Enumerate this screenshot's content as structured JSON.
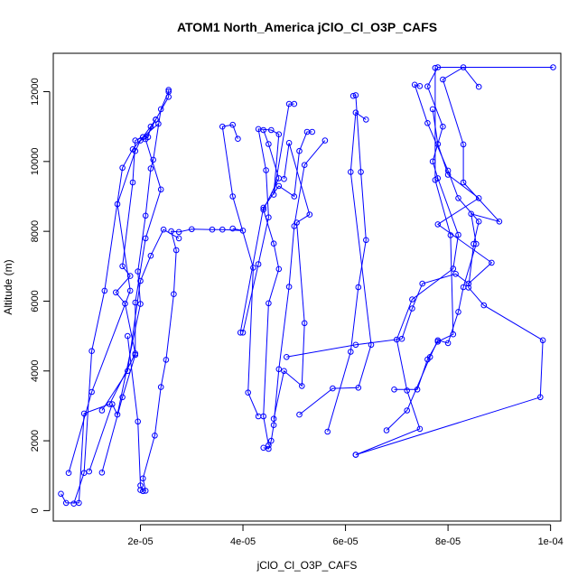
{
  "chart_data": {
    "type": "line",
    "title": "ATOM1 North_America jClO_Cl_O3P_CAFS",
    "xlabel": "jClO_Cl_O3P_CAFS",
    "ylabel": "Altitude (m)",
    "xlim": [
      3e-06,
      0.000102
    ],
    "ylim": [
      -300,
      13100
    ],
    "x_ticks": [
      {
        "value": 2e-05,
        "label": "2e-05"
      },
      {
        "value": 4e-05,
        "label": "4e-05"
      },
      {
        "value": 6e-05,
        "label": "6e-05"
      },
      {
        "value": 8e-05,
        "label": "8e-05"
      },
      {
        "value": 0.0001,
        "label": "1e-04"
      }
    ],
    "y_ticks": [
      {
        "value": 0,
        "label": "0"
      },
      {
        "value": 2000,
        "label": "2000"
      },
      {
        "value": 4000,
        "label": "4000"
      },
      {
        "value": 6000,
        "label": "6000"
      },
      {
        "value": 8000,
        "label": "8000"
      },
      {
        "value": 10000,
        "label": "10000"
      },
      {
        "value": 12000,
        "label": "12000"
      }
    ],
    "grid": false,
    "legend": "none",
    "series_color": "#0000ff",
    "marker": "open-circle",
    "series": [
      {
        "points": [
          [
            4.5e-06,
            480
          ],
          [
            5.5e-06,
            220
          ],
          [
            8e-06,
            220
          ],
          [
            9e-06,
            2780
          ],
          [
            1.4e-05,
            3050
          ],
          [
            1.9e-05,
            4500
          ],
          [
            1.7e-05,
            5930
          ],
          [
            1.52e-05,
            6250
          ],
          [
            1.8e-05,
            6720
          ],
          [
            1.65e-05,
            7000
          ],
          [
            1.85e-05,
            9400
          ],
          [
            1.9e-05,
            10600
          ],
          [
            2.05e-05,
            10700
          ],
          [
            2.3e-05,
            11200
          ],
          [
            2.55e-05,
            11850
          ],
          [
            2.55e-05,
            12050
          ]
        ]
      },
      {
        "points": [
          [
            2e-05,
            590
          ],
          [
            2.1e-05,
            570
          ],
          [
            2.05e-05,
            920
          ],
          [
            2.28e-05,
            2150
          ],
          [
            2.4e-05,
            3540
          ],
          [
            2.5e-05,
            4320
          ],
          [
            2.65e-05,
            6200
          ],
          [
            2.7e-05,
            7460
          ],
          [
            2.6e-05,
            8000
          ],
          [
            2.75e-05,
            7980
          ],
          [
            3e-05,
            8060
          ],
          [
            3.4e-05,
            8050
          ],
          [
            3.6e-05,
            8050
          ],
          [
            4e-05,
            8020
          ],
          [
            3.8e-05,
            8080
          ]
        ]
      },
      {
        "points": [
          [
            6e-06,
            1080
          ],
          [
            1.05e-05,
            3400
          ],
          [
            1.8e-05,
            6300
          ],
          [
            1.55e-05,
            8780
          ],
          [
            1.9e-05,
            10300
          ],
          [
            2e-05,
            10600
          ],
          [
            2.15e-05,
            10700
          ],
          [
            2.2e-05,
            11000
          ],
          [
            2.3e-05,
            11200
          ]
        ]
      },
      {
        "points": [
          [
            1e-05,
            1120
          ],
          [
            1.45e-05,
            3050
          ],
          [
            1.55e-05,
            2750
          ],
          [
            2e-05,
            5920
          ],
          [
            1.95e-05,
            6850
          ],
          [
            2.1e-05,
            8450
          ],
          [
            2.2e-05,
            9800
          ],
          [
            2.25e-05,
            10050
          ],
          [
            2.4e-05,
            11500
          ],
          [
            2.55e-05,
            12000
          ]
        ]
      },
      {
        "points": [
          [
            7e-06,
            200
          ],
          [
            9e-06,
            1080
          ],
          [
            1.05e-05,
            4570
          ],
          [
            1.3e-05,
            6300
          ],
          [
            1.65e-05,
            9820
          ],
          [
            1.85e-05,
            10350
          ],
          [
            2.05e-05,
            10700
          ],
          [
            2.35e-05,
            11080
          ]
        ]
      },
      {
        "points": [
          [
            1.25e-05,
            1090
          ],
          [
            1.65e-05,
            3250
          ],
          [
            1.9e-05,
            4460
          ],
          [
            1.9e-05,
            5960
          ],
          [
            2.1e-05,
            7800
          ],
          [
            2.4e-05,
            9200
          ],
          [
            2.1e-05,
            10640
          ],
          [
            2.3e-05,
            11200
          ]
        ]
      },
      {
        "points": [
          [
            1.25e-05,
            2870
          ],
          [
            1.75e-05,
            4000
          ],
          [
            2e-05,
            6580
          ],
          [
            2.2e-05,
            7300
          ],
          [
            2.45e-05,
            8050
          ],
          [
            2.75e-05,
            7800
          ]
        ]
      },
      {
        "points": [
          [
            1.75e-05,
            5000
          ],
          [
            1.95e-05,
            2550
          ],
          [
            2e-05,
            720
          ],
          [
            2.05e-05,
            560
          ]
        ]
      },
      {
        "points": [
          [
            4.4e-05,
            1800
          ],
          [
            4.5e-05,
            1770
          ],
          [
            4.55e-05,
            2000
          ],
          [
            4.6e-05,
            2450
          ],
          [
            4.7e-05,
            4050
          ],
          [
            4.9e-05,
            6410
          ],
          [
            5e-05,
            8150
          ],
          [
            5.2e-05,
            9900
          ],
          [
            5.6e-05,
            10600
          ]
        ]
      },
      {
        "points": [
          [
            4.3e-05,
            2700
          ],
          [
            4.1e-05,
            3380
          ],
          [
            4.2e-05,
            6960
          ],
          [
            3.8e-05,
            9000
          ],
          [
            3.6e-05,
            11000
          ],
          [
            3.8e-05,
            11050
          ],
          [
            3.9e-05,
            10650
          ]
        ]
      },
      {
        "points": [
          [
            4.5e-05,
            1870
          ],
          [
            4.4e-05,
            2700
          ],
          [
            4.5e-05,
            5940
          ],
          [
            4.7e-05,
            6920
          ],
          [
            4.6e-05,
            7650
          ],
          [
            4.4e-05,
            8620
          ],
          [
            4.7e-05,
            9520
          ],
          [
            4.5e-05,
            10500
          ],
          [
            4.4e-05,
            10900
          ]
        ]
      },
      {
        "points": [
          [
            4e-05,
            5100
          ],
          [
            4.3e-05,
            7060
          ],
          [
            4.5e-05,
            8400
          ],
          [
            4.45e-05,
            9750
          ],
          [
            4.3e-05,
            10930
          ],
          [
            4.55e-05,
            10900
          ],
          [
            4.7e-05,
            10780
          ],
          [
            4.6e-05,
            9050
          ],
          [
            4.9e-05,
            11650
          ],
          [
            5e-05,
            11650
          ]
        ]
      },
      {
        "points": [
          [
            3.95e-05,
            5100
          ],
          [
            4.4e-05,
            8680
          ],
          [
            4.7e-05,
            9300
          ],
          [
            5e-05,
            9000
          ],
          [
            5.1e-05,
            10300
          ],
          [
            5.25e-05,
            10850
          ],
          [
            5.35e-05,
            10850
          ]
        ]
      },
      {
        "points": [
          [
            5.1e-05,
            2750
          ],
          [
            5.75e-05,
            3500
          ],
          [
            6.25e-05,
            3520
          ],
          [
            6.5e-05,
            4750
          ],
          [
            6.1e-05,
            9700
          ],
          [
            6.2e-05,
            11400
          ],
          [
            6.4e-05,
            11200
          ]
        ]
      },
      {
        "points": [
          [
            4.6e-05,
            2630
          ],
          [
            4.8e-05,
            4000
          ],
          [
            5.15e-05,
            3570
          ],
          [
            5.2e-05,
            5370
          ],
          [
            5.05e-05,
            8250
          ],
          [
            5.3e-05,
            8480
          ],
          [
            4.9e-05,
            10530
          ],
          [
            4.8e-05,
            9500
          ]
        ]
      },
      {
        "points": [
          [
            4.85e-05,
            4400
          ],
          [
            6.2e-05,
            4750
          ],
          [
            7.1e-05,
            4920
          ],
          [
            7.3e-05,
            5790
          ],
          [
            7.5e-05,
            6500
          ],
          [
            8.15e-05,
            6780
          ],
          [
            8.4e-05,
            6500
          ],
          [
            8.85e-05,
            7100
          ],
          [
            7.8e-05,
            8200
          ],
          [
            8.6e-05,
            8950
          ],
          [
            8e-05,
            9620
          ],
          [
            7.8e-05,
            10500
          ],
          [
            7.7e-05,
            11500
          ]
        ]
      },
      {
        "points": [
          [
            5.65e-05,
            2260
          ],
          [
            6.1e-05,
            4550
          ],
          [
            6.25e-05,
            6400
          ],
          [
            6.4e-05,
            7750
          ],
          [
            6.3e-05,
            9700
          ],
          [
            6.2e-05,
            11900
          ],
          [
            6.15e-05,
            11880
          ]
        ]
      },
      {
        "points": [
          [
            6.2e-05,
            1600
          ],
          [
            7.45e-05,
            2340
          ],
          [
            7.2e-05,
            3440
          ],
          [
            7e-05,
            4900
          ],
          [
            7.3e-05,
            6050
          ],
          [
            8.1e-05,
            6930
          ],
          [
            8.2e-05,
            7900
          ],
          [
            7.8e-05,
            9520
          ],
          [
            7.7e-05,
            10000
          ],
          [
            7.9e-05,
            11000
          ],
          [
            7.6e-05,
            12150
          ],
          [
            7.8e-05,
            12700
          ],
          [
            0.0001005,
            12700
          ]
        ]
      },
      {
        "points": [
          [
            6.2e-05,
            1600
          ],
          [
            9.8e-05,
            3250
          ],
          [
            9.85e-05,
            4880
          ],
          [
            8.7e-05,
            5880
          ],
          [
            8.4e-05,
            6390
          ],
          [
            8.5e-05,
            7640
          ],
          [
            8.6e-05,
            8280
          ],
          [
            8.2e-05,
            8950
          ],
          [
            8e-05,
            9740
          ],
          [
            7.6e-05,
            11100
          ],
          [
            7.35e-05,
            12200
          ],
          [
            7.45e-05,
            12160
          ]
        ]
      },
      {
        "points": [
          [
            6.8e-05,
            2300
          ],
          [
            7.2e-05,
            2870
          ],
          [
            7.65e-05,
            4400
          ],
          [
            7.8e-05,
            4880
          ],
          [
            8e-05,
            4800
          ],
          [
            8.2e-05,
            5690
          ],
          [
            8.3e-05,
            6400
          ],
          [
            8.55e-05,
            7640
          ],
          [
            8.45e-05,
            8500
          ],
          [
            9e-05,
            8280
          ],
          [
            8.3e-05,
            9400
          ],
          [
            8.3e-05,
            10490
          ],
          [
            7.9e-05,
            12350
          ],
          [
            8.3e-05,
            12700
          ],
          [
            8.6e-05,
            12140
          ]
        ]
      },
      {
        "points": [
          [
            6.95e-05,
            3470
          ],
          [
            7.4e-05,
            3470
          ],
          [
            7.6e-05,
            4330
          ],
          [
            7.8e-05,
            4840
          ],
          [
            8.1e-05,
            5050
          ],
          [
            8.05e-05,
            7890
          ],
          [
            7.75e-05,
            9470
          ],
          [
            7.75e-05,
            12680
          ]
        ]
      }
    ]
  }
}
